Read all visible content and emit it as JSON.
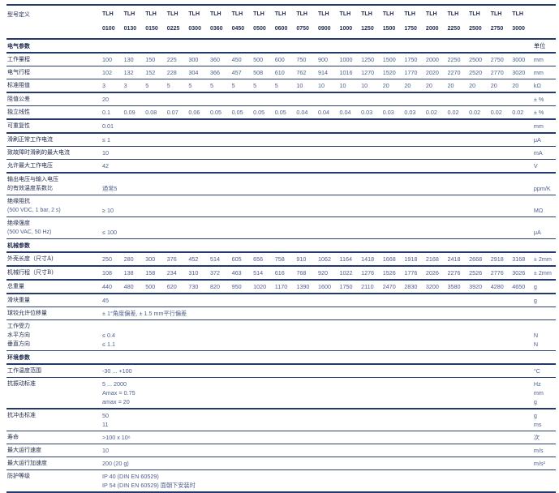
{
  "header": {
    "label": "型号定义",
    "models": [
      [
        "TLH",
        "0100"
      ],
      [
        "TLH",
        "0130"
      ],
      [
        "TLH",
        "0150"
      ],
      [
        "TLH",
        "0225"
      ],
      [
        "TLH",
        "0300"
      ],
      [
        "TLH",
        "0360"
      ],
      [
        "TLH",
        "0450"
      ],
      [
        "TLH",
        "0500"
      ],
      [
        "TLH",
        "0600"
      ],
      [
        "TLH",
        "0750"
      ],
      [
        "TLH",
        "0900"
      ],
      [
        "TLH",
        "1000"
      ],
      [
        "TLH",
        "1250"
      ],
      [
        "TLH",
        "1500"
      ],
      [
        "TLH",
        "1750"
      ],
      [
        "TLH",
        "2000"
      ],
      [
        "TLH",
        "2250"
      ],
      [
        "TLH",
        "2500"
      ],
      [
        "TLH",
        "2750"
      ],
      [
        "TLH",
        "3000"
      ]
    ]
  },
  "rows": [
    {
      "type": "section",
      "label": [
        "电气参数"
      ],
      "unit": [
        "单位"
      ]
    },
    {
      "label": [
        "工作量程"
      ],
      "values": [
        "100",
        "130",
        "150",
        "225",
        "300",
        "360",
        "450",
        "500",
        "600",
        "750",
        "900",
        "1000",
        "1250",
        "1500",
        "1750",
        "2000",
        "2250",
        "2500",
        "2750",
        "3000"
      ],
      "unit": [
        "mm"
      ]
    },
    {
      "label": [
        "电气行程"
      ],
      "values": [
        "102",
        "132",
        "152",
        "228",
        "304",
        "366",
        "457",
        "508",
        "610",
        "762",
        "914",
        "1016",
        "1270",
        "1520",
        "1770",
        "2020",
        "2270",
        "2520",
        "2770",
        "3020"
      ],
      "unit": [
        "mm"
      ]
    },
    {
      "label": [
        "标准阻值"
      ],
      "values": [
        "3",
        "3",
        "5",
        "5",
        "5",
        "5",
        "5",
        "5",
        "5",
        "10",
        "10",
        "10",
        "10",
        "20",
        "20",
        "20",
        "20",
        "20",
        "20",
        "20"
      ],
      "unit": [
        "kΩ"
      ],
      "major": true
    },
    {
      "label": [
        "阻值公差"
      ],
      "single": [
        "20"
      ],
      "unit": [
        "± %"
      ]
    },
    {
      "label": [
        "独立线性"
      ],
      "values": [
        "0.1",
        "0.09",
        "0.08",
        "0.07",
        "0.06",
        "0.05",
        "0.05",
        "0.05",
        "0.05",
        "0.04",
        "0.04",
        "0.04",
        "0.03",
        "0.03",
        "0.03",
        "0.02",
        "0.02",
        "0.02",
        "0.02",
        "0.02"
      ],
      "unit": [
        "± %"
      ],
      "major": true
    },
    {
      "label": [
        "可重复性"
      ],
      "single": [
        "0.01"
      ],
      "unit": [
        "mm"
      ],
      "major": true
    },
    {
      "label": [
        "滑刷正常工作电流"
      ],
      "single": [
        "≤ 1"
      ],
      "unit": [
        "μA"
      ]
    },
    {
      "label": [
        "致故障时滑刷的最大电流"
      ],
      "single": [
        "10"
      ],
      "unit": [
        "mA"
      ]
    },
    {
      "label": [
        "允许最大工作电压"
      ],
      "single": [
        "42"
      ],
      "unit": [
        "V"
      ],
      "major": true
    },
    {
      "label": [
        "输出电压与输入电压",
        "的有效温度系数比"
      ],
      "single": [
        "通常5"
      ],
      "unit": [
        "ppm/K"
      ]
    },
    {
      "label": [
        "绝缘阻抗",
        "(500 VDC, 1 bar, 2 s)"
      ],
      "single": [
        "≥ 10"
      ],
      "unit": [
        "MΩ"
      ]
    },
    {
      "label": [
        "绝缘强度",
        "(500 VAC, 50 Hz)"
      ],
      "single": [
        "≤ 100"
      ],
      "unit": [
        "μA"
      ]
    },
    {
      "type": "section",
      "label": [
        "机械参数"
      ],
      "unit": [
        ""
      ]
    },
    {
      "label": [
        "外壳长度（尺寸A)"
      ],
      "values": [
        "250",
        "280",
        "300",
        "376",
        "452",
        "514",
        "605",
        "656",
        "758",
        "910",
        "1062",
        "1164",
        "1418",
        "1668",
        "1918",
        "2168",
        "2418",
        "2668",
        "2918",
        "3168"
      ],
      "unit": [
        "± 2mm"
      ],
      "major": true
    },
    {
      "label": [
        "机械行程（尺寸B)"
      ],
      "values": [
        "108",
        "138",
        "158",
        "234",
        "310",
        "372",
        "463",
        "514",
        "616",
        "768",
        "920",
        "1022",
        "1276",
        "1526",
        "1776",
        "2026",
        "2276",
        "2526",
        "2776",
        "3026"
      ],
      "unit": [
        "± 2mm"
      ],
      "major": true
    },
    {
      "label": [
        "总重量"
      ],
      "values": [
        "440",
        "480",
        "500",
        "620",
        "730",
        "820",
        "950",
        "1020",
        "1170",
        "1390",
        "1600",
        "1750",
        "2110",
        "2470",
        "2830",
        "3200",
        "3580",
        "3920",
        "4280",
        "4650"
      ],
      "unit": [
        "g"
      ],
      "major": true
    },
    {
      "label": [
        "滑块重量"
      ],
      "single": [
        "45"
      ],
      "unit": [
        "g"
      ]
    },
    {
      "label": [
        "球铰允许位移量"
      ],
      "single": [
        "± 1°角度偏差, ± 1.5 mm平行偏差"
      ],
      "unit": [
        ""
      ]
    },
    {
      "label": [
        "工作受力",
        "水平方向",
        "垂直方向"
      ],
      "single": [
        "≤ 0.4",
        "≤ 1.1"
      ],
      "unit": [
        "N",
        "N"
      ]
    },
    {
      "type": "section",
      "label": [
        "环境参数"
      ],
      "unit": [
        ""
      ]
    },
    {
      "label": [
        "工作温度范围"
      ],
      "single": [
        "-30 ... +100"
      ],
      "unit": [
        "°C"
      ]
    },
    {
      "label": [
        "抗振动标准"
      ],
      "single": [
        "5 ... 2000",
        "Amax = 0.75",
        "amax = 20"
      ],
      "unit": [
        "Hz",
        "mm",
        "g"
      ],
      "major": true
    },
    {
      "label": [
        "抗冲击标准"
      ],
      "single": [
        "50",
        "11"
      ],
      "unit": [
        "g",
        "ms"
      ]
    },
    {
      "label": [
        "寿命"
      ],
      "single": [
        ">100 x 10⁶"
      ],
      "unit": [
        "次"
      ]
    },
    {
      "label": [
        "最大运行速度"
      ],
      "single": [
        "10"
      ],
      "unit": [
        "m/s"
      ]
    },
    {
      "label": [
        "最大运行加速度"
      ],
      "single": [
        "200 (20 g)"
      ],
      "unit": [
        "m/s²"
      ]
    },
    {
      "label": [
        "防护等级"
      ],
      "single": [
        "IP 40 (DIN EN 60529)",
        "IP 54 (DIN EN 60529) 面朝下安装时"
      ],
      "unit": [
        ""
      ],
      "major": true
    }
  ]
}
